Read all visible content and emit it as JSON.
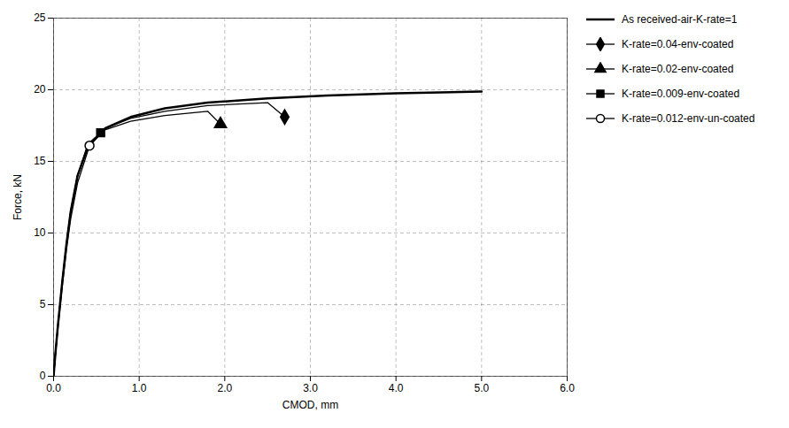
{
  "chart_data": {
    "type": "line",
    "xlabel": "CMOD, mm",
    "ylabel": "Force, kN",
    "xlim": [
      0,
      6
    ],
    "ylim": [
      0,
      25
    ],
    "xticks": [
      0,
      1,
      2,
      3,
      4,
      5,
      6
    ],
    "yticks": [
      0,
      5,
      10,
      15,
      20,
      25
    ],
    "grid": true,
    "legend": "right",
    "series": [
      {
        "name": "As received-air-K-rate=1",
        "color": "#000000",
        "line_style": "solid",
        "marker": "none",
        "x": [
          0.0,
          0.02,
          0.05,
          0.1,
          0.15,
          0.2,
          0.28,
          0.4,
          0.6,
          0.9,
          1.3,
          1.8,
          2.5,
          3.2,
          4.0,
          5.0
        ],
        "values": [
          0.0,
          1.5,
          3.5,
          6.5,
          9.2,
          11.5,
          14.0,
          16.0,
          17.3,
          18.1,
          18.7,
          19.1,
          19.4,
          19.6,
          19.75,
          19.88
        ]
      },
      {
        "name": "K-rate=0.04-env-coated",
        "color": "#000000",
        "line_style": "solid",
        "marker": "diamond",
        "x": [
          0.0,
          0.02,
          0.05,
          0.1,
          0.15,
          0.2,
          0.28,
          0.4,
          0.6,
          0.9,
          1.3,
          1.8,
          2.5,
          2.7
        ],
        "values": [
          0.0,
          1.5,
          3.5,
          6.5,
          9.2,
          11.5,
          14.0,
          16.0,
          17.3,
          18.0,
          18.5,
          18.9,
          19.1,
          18.1
        ]
      },
      {
        "name": "K-rate=0.02-env-coated",
        "color": "#000000",
        "line_style": "solid",
        "marker": "triangle",
        "x": [
          0.0,
          0.02,
          0.05,
          0.1,
          0.15,
          0.2,
          0.28,
          0.4,
          0.6,
          0.9,
          1.3,
          1.8,
          1.95
        ],
        "values": [
          0.0,
          1.5,
          3.5,
          6.5,
          9.2,
          11.5,
          14.0,
          16.0,
          17.2,
          17.8,
          18.2,
          18.5,
          17.6
        ]
      },
      {
        "name": "K-rate=0.009-env-coated",
        "color": "#000000",
        "line_style": "solid",
        "marker": "square",
        "x": [
          0.0,
          0.02,
          0.05,
          0.1,
          0.15,
          0.2,
          0.28,
          0.4,
          0.55
        ],
        "values": [
          0.0,
          1.5,
          3.5,
          6.5,
          9.2,
          11.5,
          14.0,
          16.2,
          17.0
        ]
      },
      {
        "name": "K-rate=0.012-env-un-coated",
        "color": "#000000",
        "line_style": "solid",
        "marker": "open_circle",
        "x": [
          0.0,
          0.02,
          0.05,
          0.1,
          0.15,
          0.2,
          0.28,
          0.42
        ],
        "values": [
          0.0,
          1.4,
          3.3,
          6.2,
          8.8,
          11.0,
          13.5,
          16.1
        ]
      }
    ]
  }
}
